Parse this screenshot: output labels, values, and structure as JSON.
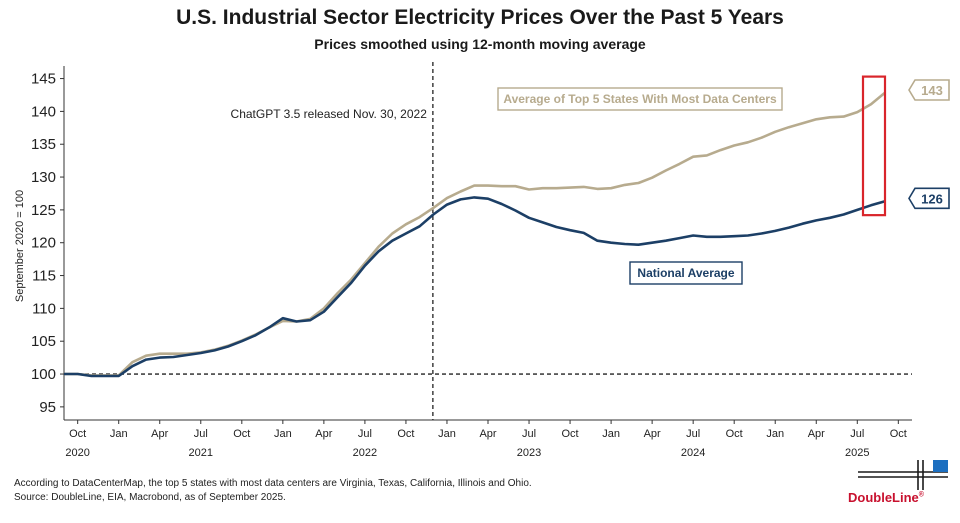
{
  "header": {
    "title": "U.S. Industrial Sector Electricity Prices Over the Past 5 Years",
    "subtitle": "Prices smoothed using 12-month moving average"
  },
  "footer": {
    "note": "According to DataCenterMap, the top 5 states with most data centers are Virginia, Texas, California, Illinois and Ohio.",
    "source": "Source: DoubleLine, EIA, Macrobond, as of September 2025."
  },
  "logo": {
    "text": "DoubleLine",
    "mark": "®"
  },
  "colors": {
    "top5": "#b7ab8e",
    "national": "#1c3f66",
    "highlight": "#d9252b",
    "text": "#1a1a1a"
  },
  "chart_data": {
    "type": "line",
    "title": "U.S. Industrial Sector Electricity Prices Over the Past 5 Years",
    "subtitle": "Prices smoothed using 12-month moving average",
    "ylabel": "September 2020 = 100",
    "xlabel": "",
    "ylim": [
      93,
      146
    ],
    "yticks": [
      95,
      100,
      105,
      110,
      115,
      120,
      125,
      130,
      135,
      140,
      145
    ],
    "x_start": "2020-09",
    "x_end": "2025-11",
    "xticks": [
      {
        "month": "2020-10",
        "label": "Oct",
        "year": "2020"
      },
      {
        "month": "2021-01",
        "label": "Jan"
      },
      {
        "month": "2021-04",
        "label": "Apr"
      },
      {
        "month": "2021-07",
        "label": "Jul",
        "year": "2021"
      },
      {
        "month": "2021-10",
        "label": "Oct"
      },
      {
        "month": "2022-01",
        "label": "Jan"
      },
      {
        "month": "2022-04",
        "label": "Apr"
      },
      {
        "month": "2022-07",
        "label": "Jul",
        "year": "2022"
      },
      {
        "month": "2022-10",
        "label": "Oct"
      },
      {
        "month": "2023-01",
        "label": "Jan"
      },
      {
        "month": "2023-04",
        "label": "Apr"
      },
      {
        "month": "2023-07",
        "label": "Jul",
        "year": "2023"
      },
      {
        "month": "2023-10",
        "label": "Oct"
      },
      {
        "month": "2024-01",
        "label": "Jan"
      },
      {
        "month": "2024-04",
        "label": "Apr"
      },
      {
        "month": "2024-07",
        "label": "Jul",
        "year": "2024"
      },
      {
        "month": "2024-10",
        "label": "Oct"
      },
      {
        "month": "2025-01",
        "label": "Jan"
      },
      {
        "month": "2025-04",
        "label": "Apr"
      },
      {
        "month": "2025-07",
        "label": "Jul",
        "year": "2025"
      },
      {
        "month": "2025-10",
        "label": "Oct"
      }
    ],
    "reference_line": {
      "y": 100,
      "style": "dashed"
    },
    "event": {
      "month": "2022-11.97",
      "label": "ChatGPT 3.5 released Nov. 30, 2022"
    },
    "series": [
      {
        "name": "Average of Top 5 States With Most Data Centers",
        "end_label": "143",
        "months": [
          "2020-09",
          "2020-10",
          "2020-11",
          "2020-12",
          "2021-01",
          "2021-02",
          "2021-03",
          "2021-04",
          "2021-05",
          "2021-06",
          "2021-07",
          "2021-08",
          "2021-09",
          "2021-10",
          "2021-11",
          "2021-12",
          "2022-01",
          "2022-02",
          "2022-03",
          "2022-04",
          "2022-05",
          "2022-06",
          "2022-07",
          "2022-08",
          "2022-09",
          "2022-10",
          "2022-11",
          "2022-12",
          "2023-01",
          "2023-02",
          "2023-03",
          "2023-04",
          "2023-05",
          "2023-06",
          "2023-07",
          "2023-08",
          "2023-09",
          "2023-10",
          "2023-11",
          "2023-12",
          "2024-01",
          "2024-02",
          "2024-03",
          "2024-04",
          "2024-05",
          "2024-06",
          "2024-07",
          "2024-08",
          "2024-09",
          "2024-10",
          "2024-11",
          "2024-12",
          "2025-01",
          "2025-02",
          "2025-03",
          "2025-04",
          "2025-05",
          "2025-06",
          "2025-07",
          "2025-08",
          "2025-09"
        ],
        "values": [
          100,
          100,
          99.8,
          99.8,
          99.8,
          101.8,
          102.8,
          103.1,
          103.1,
          103.1,
          103.3,
          103.7,
          104.3,
          105.1,
          106.0,
          107.1,
          108.1,
          108.0,
          108.4,
          110.0,
          112.3,
          114.4,
          116.9,
          119.4,
          121.4,
          122.8,
          123.9,
          125.3,
          126.8,
          127.8,
          128.7,
          128.7,
          128.6,
          128.6,
          128.1,
          128.3,
          128.3,
          128.4,
          128.5,
          128.2,
          128.3,
          128.8,
          129.1,
          129.9,
          131.0,
          132.0,
          133.1,
          133.3,
          134.1,
          134.8,
          135.3,
          136.0,
          136.9,
          137.6,
          138.2,
          138.8,
          139.1,
          139.2,
          139.9,
          141.1,
          142.8
        ]
      },
      {
        "name": "National Average",
        "end_label": "126",
        "months": [
          "2020-09",
          "2020-10",
          "2020-11",
          "2020-12",
          "2021-01",
          "2021-02",
          "2021-03",
          "2021-04",
          "2021-05",
          "2021-06",
          "2021-07",
          "2021-08",
          "2021-09",
          "2021-10",
          "2021-11",
          "2021-12",
          "2022-01",
          "2022-02",
          "2022-03",
          "2022-04",
          "2022-05",
          "2022-06",
          "2022-07",
          "2022-08",
          "2022-09",
          "2022-10",
          "2022-11",
          "2022-12",
          "2023-01",
          "2023-02",
          "2023-03",
          "2023-04",
          "2023-05",
          "2023-06",
          "2023-07",
          "2023-08",
          "2023-09",
          "2023-10",
          "2023-11",
          "2023-12",
          "2024-01",
          "2024-02",
          "2024-03",
          "2024-04",
          "2024-05",
          "2024-06",
          "2024-07",
          "2024-08",
          "2024-09",
          "2024-10",
          "2024-11",
          "2024-12",
          "2025-01",
          "2025-02",
          "2025-03",
          "2025-04",
          "2025-05",
          "2025-06",
          "2025-07",
          "2025-08",
          "2025-09"
        ],
        "values": [
          100,
          100,
          99.7,
          99.7,
          99.7,
          101.2,
          102.2,
          102.5,
          102.6,
          102.9,
          103.2,
          103.6,
          104.2,
          105.0,
          105.9,
          107.1,
          108.5,
          108.0,
          108.2,
          109.5,
          111.7,
          113.9,
          116.5,
          118.7,
          120.3,
          121.4,
          122.5,
          124.3,
          125.8,
          126.6,
          126.9,
          126.7,
          125.9,
          124.9,
          123.8,
          123.1,
          122.4,
          121.9,
          121.5,
          120.3,
          120.0,
          119.8,
          119.7,
          120.0,
          120.3,
          120.7,
          121.1,
          120.9,
          120.9,
          121.0,
          121.1,
          121.4,
          121.8,
          122.3,
          122.9,
          123.4,
          123.8,
          124.3,
          125.0,
          125.7,
          126.3
        ]
      }
    ]
  }
}
